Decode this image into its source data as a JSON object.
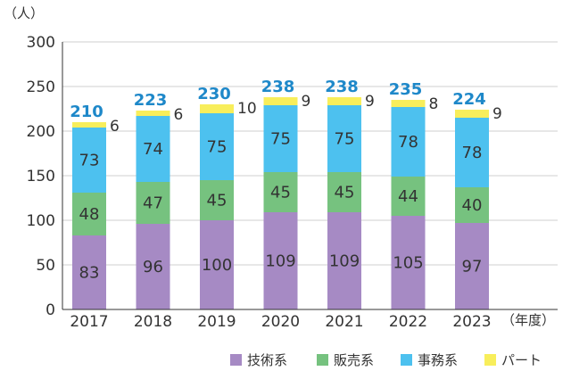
{
  "chart_data": {
    "type": "bar",
    "stacked": true,
    "y_unit_label": "（人）",
    "x_unit_label": "（年度）",
    "categories": [
      "2017",
      "2018",
      "2019",
      "2020",
      "2021",
      "2022",
      "2023"
    ],
    "ylim": [
      0,
      300
    ],
    "yticks": [
      0,
      50,
      100,
      150,
      200,
      250,
      300
    ],
    "grid": true,
    "legend_position": "bottom-right",
    "series": [
      {
        "name": "技術系",
        "values": [
          83,
          96,
          100,
          109,
          109,
          105,
          97
        ],
        "color": "#a68ac4"
      },
      {
        "name": "販売系",
        "values": [
          48,
          47,
          45,
          45,
          45,
          44,
          40
        ],
        "color": "#76c27f"
      },
      {
        "name": "事務系",
        "values": [
          73,
          74,
          75,
          75,
          75,
          78,
          78
        ],
        "color": "#4dc1ef"
      },
      {
        "name": "パート",
        "values": [
          6,
          6,
          10,
          9,
          9,
          8,
          9
        ],
        "color": "#f8ee5b"
      }
    ],
    "totals": [
      210,
      223,
      230,
      238,
      238,
      235,
      224
    ],
    "total_color": "#1e88c9"
  }
}
